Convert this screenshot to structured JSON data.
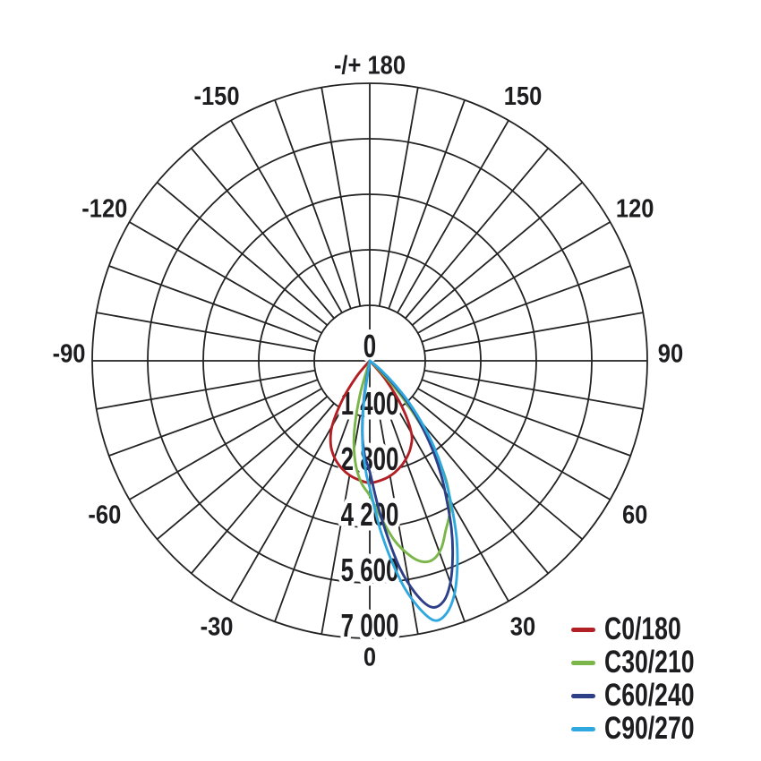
{
  "page": {
    "background": "#ffffff"
  },
  "chart_data": {
    "type": "line",
    "subtype": "polar-photometric-distribution",
    "angle_unit": "degrees",
    "angle_zero_position": "bottom",
    "angle_grid_step_deg": 10,
    "angle_label_step_deg": 30,
    "grid_on": true,
    "grid_color": "#232323",
    "text_color": "#1d1d20",
    "top_angle_label": "-/+ 180",
    "bottom_angle_label": "0",
    "center_label": "0",
    "rmax": 7000,
    "radial_ticks": [
      {
        "value": 0,
        "label": "0"
      },
      {
        "value": 1400,
        "label": "1 400"
      },
      {
        "value": 2800,
        "label": "2 800"
      },
      {
        "value": 4200,
        "label": "4 200"
      },
      {
        "value": 5600,
        "label": "5 600"
      },
      {
        "value": 7000,
        "label": "7 000"
      }
    ],
    "angle_labels": [
      {
        "angle": -150,
        "text": "-150"
      },
      {
        "angle": -120,
        "text": "-120"
      },
      {
        "angle": -90,
        "text": "-90"
      },
      {
        "angle": -60,
        "text": "-60"
      },
      {
        "angle": -30,
        "text": "-30"
      },
      {
        "angle": 0,
        "text": "0"
      },
      {
        "angle": 30,
        "text": "30"
      },
      {
        "angle": 60,
        "text": "60"
      },
      {
        "angle": 90,
        "text": "90"
      },
      {
        "angle": 120,
        "text": "120"
      },
      {
        "angle": 150,
        "text": "150"
      },
      {
        "angle": 180,
        "text": "-/+ 180"
      }
    ],
    "legend_position": "bottom-right",
    "series": [
      {
        "name": "C0/180",
        "color": "#b22025",
        "points": [
          [
            -45,
            0
          ],
          [
            -40,
            520
          ],
          [
            -35,
            1200
          ],
          [
            -30,
            1900
          ],
          [
            -25,
            2330
          ],
          [
            -20,
            2600
          ],
          [
            -15,
            2790
          ],
          [
            -10,
            2930
          ],
          [
            -5,
            3020
          ],
          [
            0,
            3080
          ],
          [
            5,
            3030
          ],
          [
            10,
            2950
          ],
          [
            15,
            2820
          ],
          [
            20,
            2650
          ],
          [
            25,
            2430
          ],
          [
            30,
            2100
          ],
          [
            35,
            1420
          ],
          [
            40,
            640
          ],
          [
            44,
            0
          ]
        ]
      },
      {
        "name": "C30/210",
        "color": "#7ab649",
        "points": [
          [
            -20,
            0
          ],
          [
            -16,
            900
          ],
          [
            -12,
            1900
          ],
          [
            -8,
            2600
          ],
          [
            -4,
            3080
          ],
          [
            0,
            3400
          ],
          [
            4,
            3950
          ],
          [
            8,
            4600
          ],
          [
            12,
            5050
          ],
          [
            15,
            5250
          ],
          [
            18,
            5250
          ],
          [
            21,
            5050
          ],
          [
            24,
            4700
          ],
          [
            28,
            4300
          ],
          [
            32,
            3700
          ],
          [
            35,
            3000
          ],
          [
            38,
            2200
          ],
          [
            41,
            1400
          ],
          [
            44,
            650
          ],
          [
            47,
            150
          ],
          [
            49,
            0
          ]
        ]
      },
      {
        "name": "C60/240",
        "color": "#2c3f87",
        "points": [
          [
            -12,
            0
          ],
          [
            -9,
            900
          ],
          [
            -6,
            1800
          ],
          [
            -3,
            2400
          ],
          [
            0,
            2800
          ],
          [
            4,
            3900
          ],
          [
            8,
            5200
          ],
          [
            11,
            5950
          ],
          [
            14,
            6400
          ],
          [
            17,
            6350
          ],
          [
            20,
            5950
          ],
          [
            23,
            5350
          ],
          [
            26,
            4700
          ],
          [
            29,
            4000
          ],
          [
            32,
            3400
          ],
          [
            35,
            2800
          ],
          [
            38,
            2200
          ],
          [
            41,
            1650
          ],
          [
            44,
            1100
          ],
          [
            47,
            600
          ],
          [
            50,
            230
          ],
          [
            52,
            0
          ]
        ]
      },
      {
        "name": "C90/270",
        "color": "#2fa8e0",
        "points": [
          [
            -11,
            0
          ],
          [
            -8,
            1100
          ],
          [
            -5,
            2100
          ],
          [
            -2,
            2800
          ],
          [
            0,
            3200
          ],
          [
            4,
            4400
          ],
          [
            8,
            5600
          ],
          [
            11,
            6300
          ],
          [
            14,
            6750
          ],
          [
            17,
            6650
          ],
          [
            20,
            6250
          ],
          [
            23,
            5650
          ],
          [
            26,
            5000
          ],
          [
            29,
            4300
          ],
          [
            32,
            3650
          ],
          [
            35,
            3050
          ],
          [
            38,
            2450
          ],
          [
            41,
            1850
          ],
          [
            44,
            1300
          ],
          [
            47,
            800
          ],
          [
            50,
            420
          ],
          [
            53,
            130
          ],
          [
            55,
            0
          ]
        ]
      }
    ]
  }
}
